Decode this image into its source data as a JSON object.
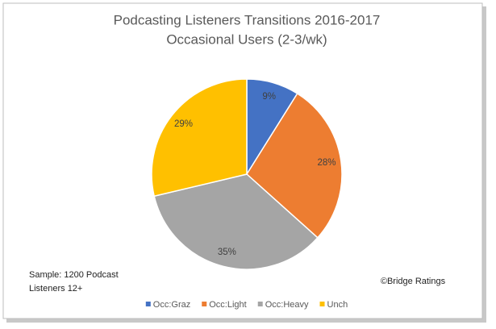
{
  "chart_data": {
    "type": "pie",
    "title": "Podcasting Listeners Transitions 2016-2017",
    "subtitle": "Occasional Users (2-3/wk)",
    "categories": [
      "Occ:Graz",
      "Occ:Light",
      "Occ:Heavy",
      "Unch"
    ],
    "values": [
      9,
      28,
      35,
      29
    ],
    "value_labels": [
      "9%",
      "28%",
      "35%",
      "29%"
    ],
    "colors": [
      "#4472c4",
      "#ed7d31",
      "#a5a5a5",
      "#ffc000"
    ],
    "legend": "bottom",
    "annotations": [
      {
        "lines": [
          "Sample: 1200 Podcast",
          "Listeners 12+"
        ]
      },
      {
        "lines": [
          "©Bridge Ratings"
        ]
      }
    ]
  }
}
